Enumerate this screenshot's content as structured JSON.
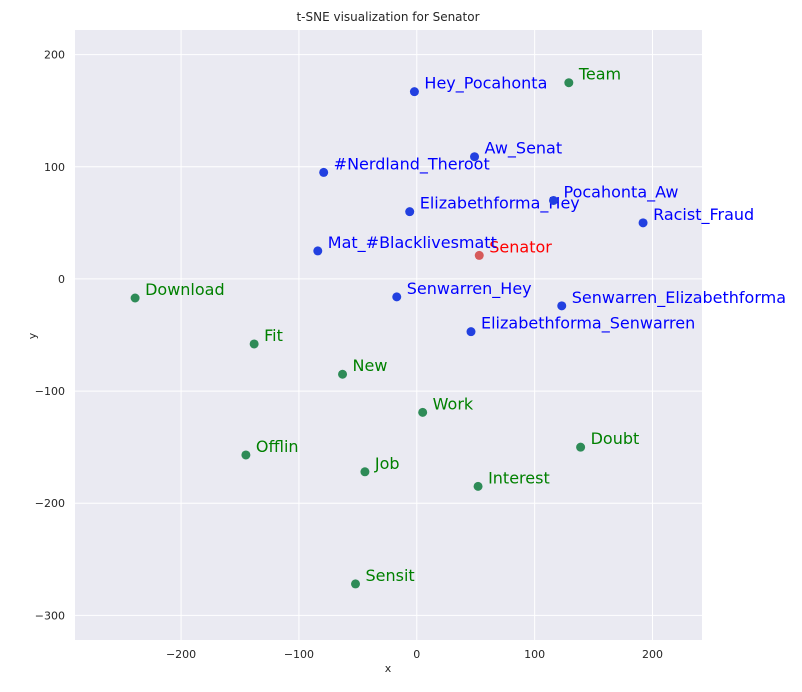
{
  "chart_data": {
    "type": "scatter",
    "title": "t-SNE visualization for Senator",
    "xlabel": "x",
    "ylabel": "y",
    "xlim": [
      -290,
      242
    ],
    "ylim": [
      -322,
      222
    ],
    "xticks": [
      -200,
      -100,
      0,
      100,
      200
    ],
    "yticks": [
      200,
      100,
      0,
      -100,
      -200,
      -300
    ],
    "xtick_labels": [
      "−200",
      "−100",
      "0",
      "100",
      "200"
    ],
    "ytick_labels": [
      "200",
      "100",
      "0",
      "−100",
      "−200",
      "−300"
    ],
    "grid": true,
    "background": "#eaeaf2",
    "grid_color": "#ffffff",
    "colors": {
      "focus": "#ff0000",
      "similar": "#0000ff",
      "dissimilar": "#008000",
      "point_blue": "#2240e0",
      "point_green": "#2e8b57",
      "point_red": "#d65a5a"
    },
    "points": [
      {
        "label": "Senator",
        "x": 53,
        "y": 21,
        "group": "focus"
      },
      {
        "label": "Hey_Pocahonta",
        "x": -2,
        "y": 167,
        "group": "similar"
      },
      {
        "label": "Aw_Senat",
        "x": 49,
        "y": 109,
        "group": "similar"
      },
      {
        "label": "#Nerdland_Theroot",
        "x": -79,
        "y": 95,
        "group": "similar"
      },
      {
        "label": "Elizabethforma_Hey",
        "x": -6,
        "y": 60,
        "group": "similar"
      },
      {
        "label": "Pocahonta_Aw",
        "x": 116,
        "y": 70,
        "group": "similar"
      },
      {
        "label": "Racist_Fraud",
        "x": 192,
        "y": 50,
        "group": "similar"
      },
      {
        "label": "Mat_#Blacklivesmatt",
        "x": -84,
        "y": 25,
        "group": "similar"
      },
      {
        "label": "Senwarren_Hey",
        "x": -17,
        "y": -16,
        "group": "similar"
      },
      {
        "label": "Senwarren_Elizabethforma",
        "x": 123,
        "y": -24,
        "group": "similar"
      },
      {
        "label": "Elizabethforma_Senwarren",
        "x": 46,
        "y": -47,
        "group": "similar"
      },
      {
        "label": "Team",
        "x": 129,
        "y": 175,
        "group": "dissimilar"
      },
      {
        "label": "Download",
        "x": -239,
        "y": -17,
        "group": "dissimilar"
      },
      {
        "label": "Fit",
        "x": -138,
        "y": -58,
        "group": "dissimilar"
      },
      {
        "label": "New",
        "x": -63,
        "y": -85,
        "group": "dissimilar"
      },
      {
        "label": "Work",
        "x": 5,
        "y": -119,
        "group": "dissimilar"
      },
      {
        "label": "Offlin",
        "x": -145,
        "y": -157,
        "group": "dissimilar"
      },
      {
        "label": "Job",
        "x": -44,
        "y": -172,
        "group": "dissimilar"
      },
      {
        "label": "Interest",
        "x": 52,
        "y": -185,
        "group": "dissimilar"
      },
      {
        "label": "Doubt",
        "x": 139,
        "y": -150,
        "group": "dissimilar"
      },
      {
        "label": "Sensit",
        "x": -52,
        "y": -272,
        "group": "dissimilar"
      }
    ]
  }
}
